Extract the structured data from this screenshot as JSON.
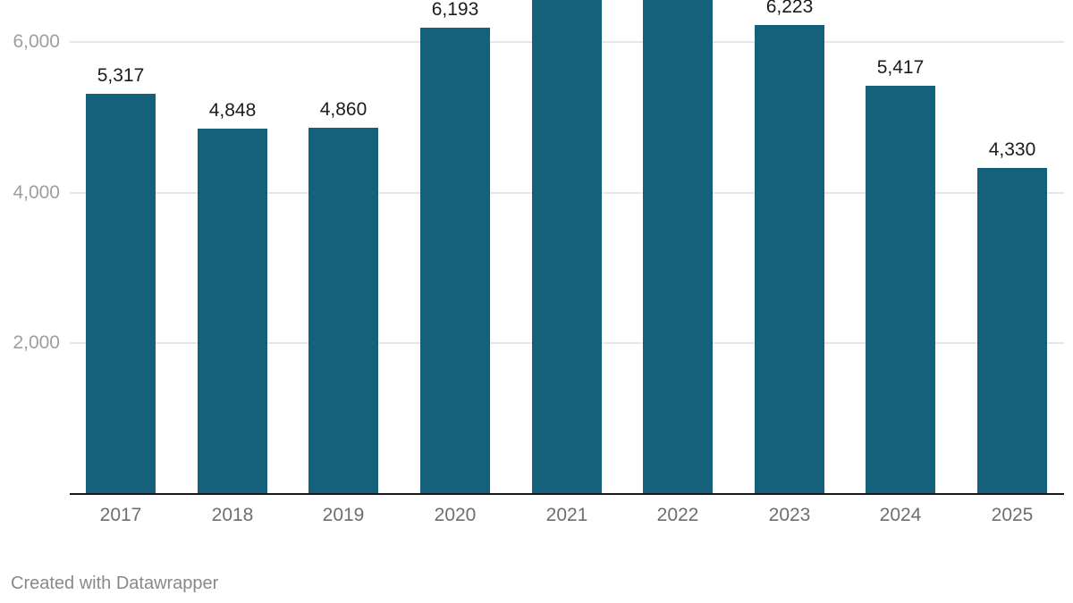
{
  "chart_data": {
    "type": "bar",
    "title": "",
    "categories": [
      "2017",
      "2018",
      "2019",
      "2020",
      "2021",
      "2022",
      "2023",
      "2024",
      "2025"
    ],
    "values": [
      5317,
      4848,
      4860,
      6193,
      null,
      null,
      6223,
      5417,
      4330
    ],
    "value_labels": [
      "5,317",
      "4,848",
      "4,860",
      "6,193",
      "",
      "",
      "6,223",
      "5,417",
      "4,330"
    ],
    "clipped_bars": [
      "2021",
      "2022"
    ],
    "y_ticks": [
      {
        "value": 2000,
        "label": "2,000"
      },
      {
        "value": 4000,
        "label": "4,000"
      },
      {
        "value": 6000,
        "label": "6,000"
      }
    ],
    "ylim_visible": [
      0,
      6560
    ],
    "grid": true,
    "legend": "none",
    "xlabel": "",
    "ylabel": ""
  },
  "colors": {
    "bar": "#15607a",
    "gridline": "#e7e7e7",
    "axis_line": "#18181a",
    "value_label": "#1c1c1c",
    "x_tick_label": "#6e6e6e",
    "y_tick_label": "#9e9e9e",
    "attribution": "#898989",
    "background": "#ffffff"
  },
  "footer": {
    "attribution": "Created with Datawrapper"
  }
}
